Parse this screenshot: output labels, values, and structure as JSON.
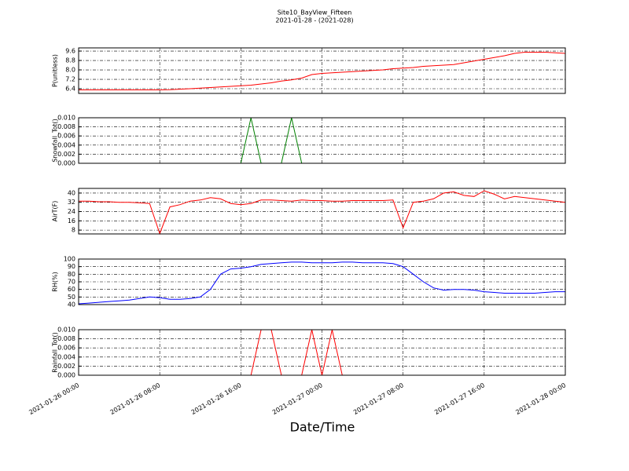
{
  "chart_data": {
    "type": "line",
    "title": "Site10_BayView_Fifteen",
    "subtitle": "2021-01-28 - (2021-028)",
    "xlabel": "Date/Time",
    "grid": true,
    "xlim": [
      "2021-01-26 00:00",
      "2021-01-28 00:00"
    ],
    "xticks": [
      "2021-01-26 00:00",
      "2021-01-26 08:00",
      "2021-01-26 16:00",
      "2021-01-27 00:00",
      "2021-01-27 08:00",
      "2021-01-27 16:00",
      "2021-01-28 00:00"
    ],
    "x": [
      "2021-01-26 00:00",
      "2021-01-26 01:00",
      "2021-01-26 02:00",
      "2021-01-26 03:00",
      "2021-01-26 04:00",
      "2021-01-26 05:00",
      "2021-01-26 06:00",
      "2021-01-26 07:00",
      "2021-01-26 08:00",
      "2021-01-26 09:00",
      "2021-01-26 10:00",
      "2021-01-26 11:00",
      "2021-01-26 12:00",
      "2021-01-26 13:00",
      "2021-01-26 14:00",
      "2021-01-26 15:00",
      "2021-01-26 16:00",
      "2021-01-26 17:00",
      "2021-01-26 18:00",
      "2021-01-26 19:00",
      "2021-01-26 20:00",
      "2021-01-26 21:00",
      "2021-01-26 22:00",
      "2021-01-26 23:00",
      "2021-01-27 00:00",
      "2021-01-27 01:00",
      "2021-01-27 02:00",
      "2021-01-27 03:00",
      "2021-01-27 04:00",
      "2021-01-27 05:00",
      "2021-01-27 06:00",
      "2021-01-27 07:00",
      "2021-01-27 08:00",
      "2021-01-27 09:00",
      "2021-01-27 10:00",
      "2021-01-27 11:00",
      "2021-01-27 12:00",
      "2021-01-27 13:00",
      "2021-01-27 14:00",
      "2021-01-27 15:00",
      "2021-01-27 16:00",
      "2021-01-27 17:00",
      "2021-01-27 18:00",
      "2021-01-27 19:00",
      "2021-01-27 20:00",
      "2021-01-27 21:00",
      "2021-01-27 22:00",
      "2021-01-27 23:00",
      "2021-01-28 00:00"
    ],
    "panels": [
      {
        "ylabel": "P(unitless)",
        "ylim": [
          6.0,
          9.87
        ],
        "yticks": [
          6.4,
          7.2,
          {
            "value": 8,
            "label": "8.0"
          },
          8.8,
          9.6
        ],
        "series": [
          {
            "color": "#ff0000",
            "values": [
              6.3,
              6.3,
              6.3,
              6.3,
              6.3,
              6.3,
              6.3,
              6.3,
              6.3,
              6.32,
              6.36,
              6.4,
              6.45,
              6.5,
              6.55,
              6.6,
              6.65,
              6.7,
              6.8,
              6.9,
              7.05,
              7.15,
              7.3,
              7.6,
              7.7,
              7.75,
              7.8,
              7.85,
              7.9,
              7.95,
              8.0,
              8.1,
              8.15,
              8.2,
              8.3,
              8.35,
              8.4,
              8.45,
              8.6,
              8.75,
              8.9,
              9.05,
              9.2,
              9.4,
              9.5,
              9.5,
              9.5,
              9.45,
              9.4
            ]
          }
        ]
      },
      {
        "ylabel": "Snowfall_Tot()",
        "ylim": [
          0,
          0.01
        ],
        "yticks": [
          {
            "value": 0,
            "label": "0.000"
          },
          {
            "value": 0.002,
            "label": "0.002"
          },
          {
            "value": 0.004,
            "label": "0.004"
          },
          {
            "value": 0.006,
            "label": "0.006"
          },
          {
            "value": 0.008,
            "label": "0.008"
          },
          {
            "value": 0.01,
            "label": "0.010"
          }
        ],
        "series": [
          {
            "color": "#008000",
            "values": [
              0,
              0,
              0,
              0,
              0,
              0,
              0,
              0,
              0,
              0,
              0,
              0,
              0,
              0,
              0,
              0,
              0,
              0.01,
              0,
              0,
              0,
              0.01,
              0,
              0,
              0,
              0,
              0,
              0,
              0,
              0,
              0,
              0,
              0,
              0,
              0,
              0,
              0,
              0,
              0,
              0,
              0,
              0,
              0,
              0,
              0,
              0,
              0,
              0,
              0
            ]
          }
        ]
      },
      {
        "ylabel": "AirT(F)",
        "ylim": [
          4.7,
          44
        ],
        "yticks": [
          8,
          16,
          24,
          32,
          40
        ],
        "series": [
          {
            "color": "#ff0000",
            "values": [
              33,
              33,
              32.5,
              32.5,
              32,
              32,
              31.5,
              31,
              5,
              28,
              30,
              33,
              34,
              36,
              35,
              31,
              30,
              31,
              34,
              34,
              33.5,
              33,
              34,
              33.5,
              33.5,
              33,
              33,
              33.5,
              33.5,
              33.5,
              33.5,
              34,
              10,
              32,
              33,
              35,
              40,
              41,
              38,
              37,
              42,
              39,
              35,
              37,
              36,
              35,
              34,
              33,
              32
            ]
          }
        ]
      },
      {
        "ylabel": "RH(%)",
        "ylim": [
          40,
          100
        ],
        "yticks": [
          40,
          50,
          60,
          70,
          80,
          90,
          100
        ],
        "series": [
          {
            "color": "#0000ff",
            "values": [
              41,
              42,
              43,
              44,
              45,
              46,
              48,
              50,
              49,
              47,
              47,
              48,
              50,
              60,
              80,
              87,
              88,
              90,
              93,
              94,
              95,
              96,
              96,
              95,
              95,
              95,
              96,
              96,
              95,
              95,
              95,
              94,
              90,
              80,
              70,
              62,
              59,
              60,
              60,
              59,
              57,
              56,
              55,
              55,
              55,
              55,
              56,
              57,
              57
            ]
          }
        ]
      },
      {
        "ylabel": "Rainfall_Tot()",
        "ylim": [
          0,
          0.01
        ],
        "yticks": [
          {
            "value": 0,
            "label": "0.000"
          },
          {
            "value": 0.002,
            "label": "0.002"
          },
          {
            "value": 0.004,
            "label": "0.004"
          },
          {
            "value": 0.006,
            "label": "0.006"
          },
          {
            "value": 0.008,
            "label": "0.008"
          },
          {
            "value": 0.01,
            "label": "0.010"
          }
        ],
        "series": [
          {
            "color": "#ff0000",
            "values": [
              0,
              0,
              0,
              0,
              0,
              0,
              0,
              0,
              0,
              0,
              0,
              0,
              0,
              0,
              0,
              0,
              0,
              0,
              0.01,
              0.01,
              0,
              0,
              0,
              0.01,
              0,
              0.01,
              0,
              0,
              0,
              0,
              0,
              0,
              0,
              0,
              0,
              0,
              0,
              0,
              0,
              0,
              0,
              0,
              0,
              0,
              0,
              0,
              0,
              0,
              0
            ]
          }
        ]
      }
    ]
  }
}
